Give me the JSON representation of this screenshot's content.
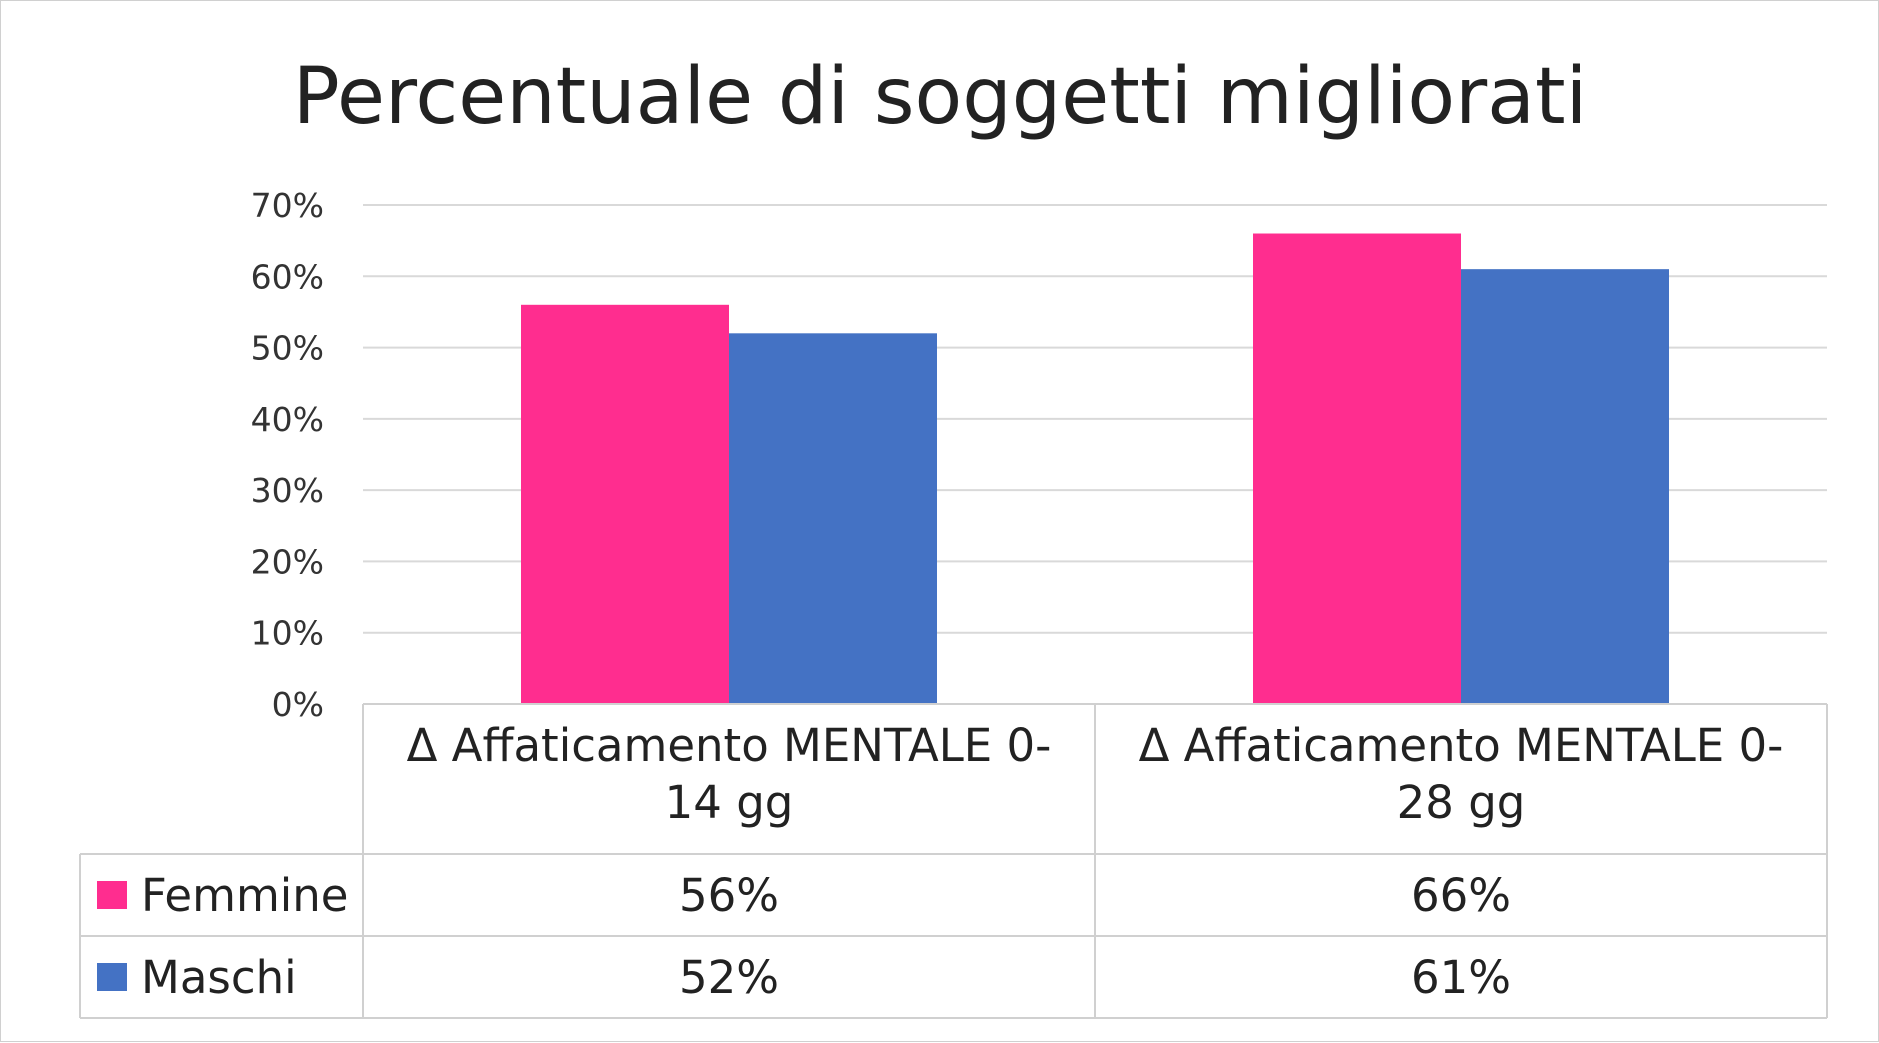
{
  "chart_data": {
    "type": "bar",
    "title": "Percentuale di soggetti migliorati",
    "categories": [
      [
        "Δ Affaticamento MENTALE 0-",
        "14 gg"
      ],
      [
        "Δ Affaticamento MENTALE 0-",
        "28 gg"
      ]
    ],
    "series": [
      {
        "name": "Femmine",
        "values": [
          56,
          66
        ],
        "labels": [
          "56%",
          "66%"
        ],
        "color": "#ff2d8f"
      },
      {
        "name": "Maschi",
        "values": [
          52,
          61
        ],
        "labels": [
          "52%",
          "61%"
        ],
        "color": "#4472c4"
      }
    ],
    "ylim": [
      0,
      70
    ],
    "y_ticks": [
      "0%",
      "10%",
      "20%",
      "30%",
      "40%",
      "50%",
      "60%",
      "70%"
    ],
    "grid": true,
    "legend": "data-table"
  }
}
